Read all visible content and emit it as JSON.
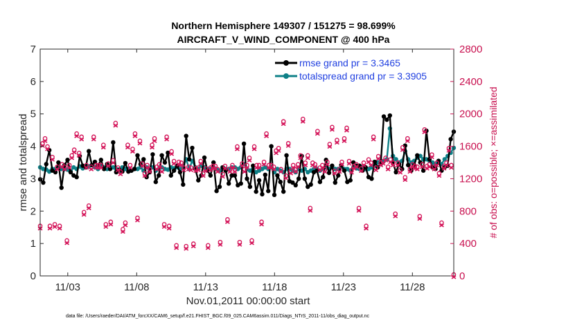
{
  "chart_data": {
    "type": "line",
    "title": "Northern Hemisphere 149307 / 151275 = 98.699%",
    "subtitle": "AIRCRAFT_V_WIND_COMPONENT @ 400 hPa",
    "xlabel": "Nov.01,2011 00:00:00 start",
    "ylabel": "rmse and totalspread",
    "y2label": "# of obs: o=possible; ×=assimilated",
    "xlim": [
      1.0,
      31.0
    ],
    "ylim": [
      0,
      7
    ],
    "y2lim": [
      0,
      2800
    ],
    "xticks": [
      3,
      8,
      13,
      18,
      23,
      28
    ],
    "xticklabels": [
      "11/03",
      "11/08",
      "11/13",
      "11/18",
      "11/23",
      "11/28"
    ],
    "yticks": [
      0,
      1,
      2,
      3,
      4,
      5,
      6,
      7
    ],
    "y2ticks": [
      0,
      400,
      800,
      1200,
      1600,
      2000,
      2400,
      2800
    ],
    "footnote": "data file: /Users/raeder/DAI/ATM_forcXX/CAM6_setup/f.e21.FHIST_BGC.f09_025.CAM6assim.011/Diags_NTrS_2011-11/obs_diag_output.nc",
    "colors": {
      "rmse": "#000000",
      "spread": "#0e8087",
      "obs": "#d4165a",
      "legend_text": "#1f3fe0"
    },
    "series": [
      {
        "name": "rmse grand pr = 3.3465",
        "values": [
          2.98,
          2.88,
          3.45,
          3.88,
          3.25,
          3.2,
          3.5,
          2.72,
          3.42,
          3.58,
          3.2,
          3.1,
          3.05,
          3.7,
          3.4,
          3.35,
          3.85,
          3.42,
          3.52,
          3.4,
          3.58,
          3.3,
          3.45,
          3.3,
          4.12,
          3.2,
          3.28,
          3.22,
          3.48,
          3.22,
          3.25,
          3.3,
          3.72,
          3.45,
          3.6,
          3.05,
          3.2,
          3.75,
          2.9,
          3.1,
          3.72,
          3.5,
          3.8,
          3.1,
          3.25,
          3.4,
          3.2,
          2.82,
          4.32,
          3.6,
          3.95,
          3.3,
          2.95,
          3.1,
          3.65,
          3.25,
          3.1,
          3.5,
          2.62,
          2.75,
          3.35,
          3.25,
          2.85,
          3.1,
          3.1,
          2.8,
          2.85,
          4.08,
          3.0,
          2.75,
          3.4,
          2.6,
          2.95,
          2.52,
          3.12,
          2.62,
          4.0,
          2.5,
          3.1,
          2.9,
          2.6,
          3.72,
          2.92,
          2.88,
          2.8,
          3.0,
          3.7,
          3.0,
          2.75,
          2.82,
          3.2,
          3.25,
          2.9,
          3.05,
          3.58,
          3.18,
          3.4,
          2.88,
          3.1,
          3.42,
          3.25,
          2.9,
          2.95,
          3.5,
          3.4,
          3.4,
          3.25,
          3.35,
          3.05,
          3.0,
          3.52,
          3.35,
          3.45,
          4.92,
          4.82,
          4.95,
          3.5,
          3.2,
          3.45,
          3.3,
          4.02,
          3.42,
          3.25,
          3.42,
          3.72,
          3.5,
          3.25,
          4.48,
          3.6,
          3.35,
          3.3,
          3.55,
          3.25,
          3.35,
          3.4,
          4.22,
          4.45
        ]
      },
      {
        "name": "totalspread grand pr = 3.3905",
        "values": [
          3.35,
          3.3,
          3.28,
          3.22,
          3.3,
          3.3,
          3.35,
          3.3,
          3.3,
          3.28,
          3.25,
          3.35,
          3.3,
          3.38,
          3.32,
          3.4,
          3.38,
          3.42,
          3.35,
          3.3,
          3.42,
          3.35,
          3.3,
          3.32,
          3.35,
          3.3,
          3.25,
          3.35,
          3.3,
          3.3,
          3.25,
          3.3,
          3.3,
          3.35,
          3.25,
          3.35,
          3.3,
          3.35,
          3.25,
          3.3,
          3.35,
          3.3,
          3.28,
          3.35,
          3.32,
          3.35,
          3.3,
          3.35,
          3.6,
          3.3,
          3.55,
          3.35,
          3.3,
          3.4,
          3.35,
          3.3,
          3.3,
          3.35,
          3.3,
          3.25,
          3.35,
          3.3,
          3.3,
          3.35,
          3.35,
          3.3,
          3.35,
          3.45,
          3.3,
          3.25,
          3.3,
          3.2,
          3.25,
          3.3,
          3.35,
          3.3,
          3.35,
          3.2,
          3.3,
          3.25,
          3.2,
          3.3,
          3.3,
          3.25,
          3.2,
          3.3,
          3.25,
          3.3,
          3.2,
          3.25,
          3.3,
          3.3,
          3.25,
          3.3,
          3.35,
          3.3,
          3.35,
          3.3,
          3.3,
          3.35,
          3.3,
          3.3,
          3.25,
          3.35,
          3.32,
          3.3,
          3.35,
          3.3,
          3.3,
          3.35,
          3.4,
          3.5,
          3.55,
          3.55,
          3.6,
          4.55,
          3.7,
          3.6,
          3.5,
          3.55,
          3.85,
          3.6,
          3.5,
          3.55,
          3.65,
          3.7,
          3.6,
          3.6,
          3.55,
          3.5,
          3.45,
          3.55,
          3.45,
          3.6,
          3.7,
          3.8,
          3.95
        ]
      },
      {
        "name": "obs_possible",
        "values": [
          600,
          1620,
          1680,
          1580,
          600,
          1450,
          620,
          1330,
          600,
          1360,
          1330,
          420,
          1350,
          1470,
          1540,
          1740,
          1500,
          1700,
          770,
          1350,
          850,
          1330,
          1700,
          1350,
          1350,
          1350,
          1600,
          620,
          1370,
          650,
          1410,
          1870,
          1320,
          1270,
          560,
          640,
          1600,
          1350,
          1550,
          1740,
          700,
          1650,
          1370,
          1250,
          1350,
          1300,
          1600,
          1680,
          1330,
          1360,
          1300,
          620,
          1700,
          600,
          1520,
          1400,
          360,
          1390,
          1380,
          1320,
          350,
          1330,
          1320,
          380,
          1310,
          1320,
          1400,
          1250,
          1310,
          360,
          1320,
          1340,
          1340,
          1300,
          400,
          1240,
          1340,
          680,
          1300,
          1350,
          1300,
          1580,
          400,
          1370,
          1300,
          1350,
          1440,
          420,
          1580,
          1350,
          1350,
          650,
          1390,
          1740,
          1350,
          1350,
          1330,
          1530,
          1560,
          1300,
          1890,
          1220,
          1620,
          1280,
          1350,
          1300,
          1360,
          1470,
          1920,
          1380,
          1470,
          820,
          1380,
          1360,
          1770,
          1320,
          1350,
          1300,
          1390,
          1610,
          1820,
          1280,
          1660,
          1300,
          1390,
          1680,
          1810,
          1400,
          1290,
          1340,
          1360,
          820,
          1310,
          1380,
          600,
          1420,
          1380,
          1700,
          1320,
          1460,
          1380,
          1400,
          1440,
          1330,
          1420,
          1380,
          750,
          1380,
          1290,
          1570,
          1200,
          1680,
          1300,
          1360,
          1340,
          1330,
          720,
          1360,
          1790,
          1340,
          1360,
          1480,
          1330,
          1380,
          1250,
          640,
          1340,
          1380,
          1560,
          1350,
          0
        ]
      }
    ]
  }
}
